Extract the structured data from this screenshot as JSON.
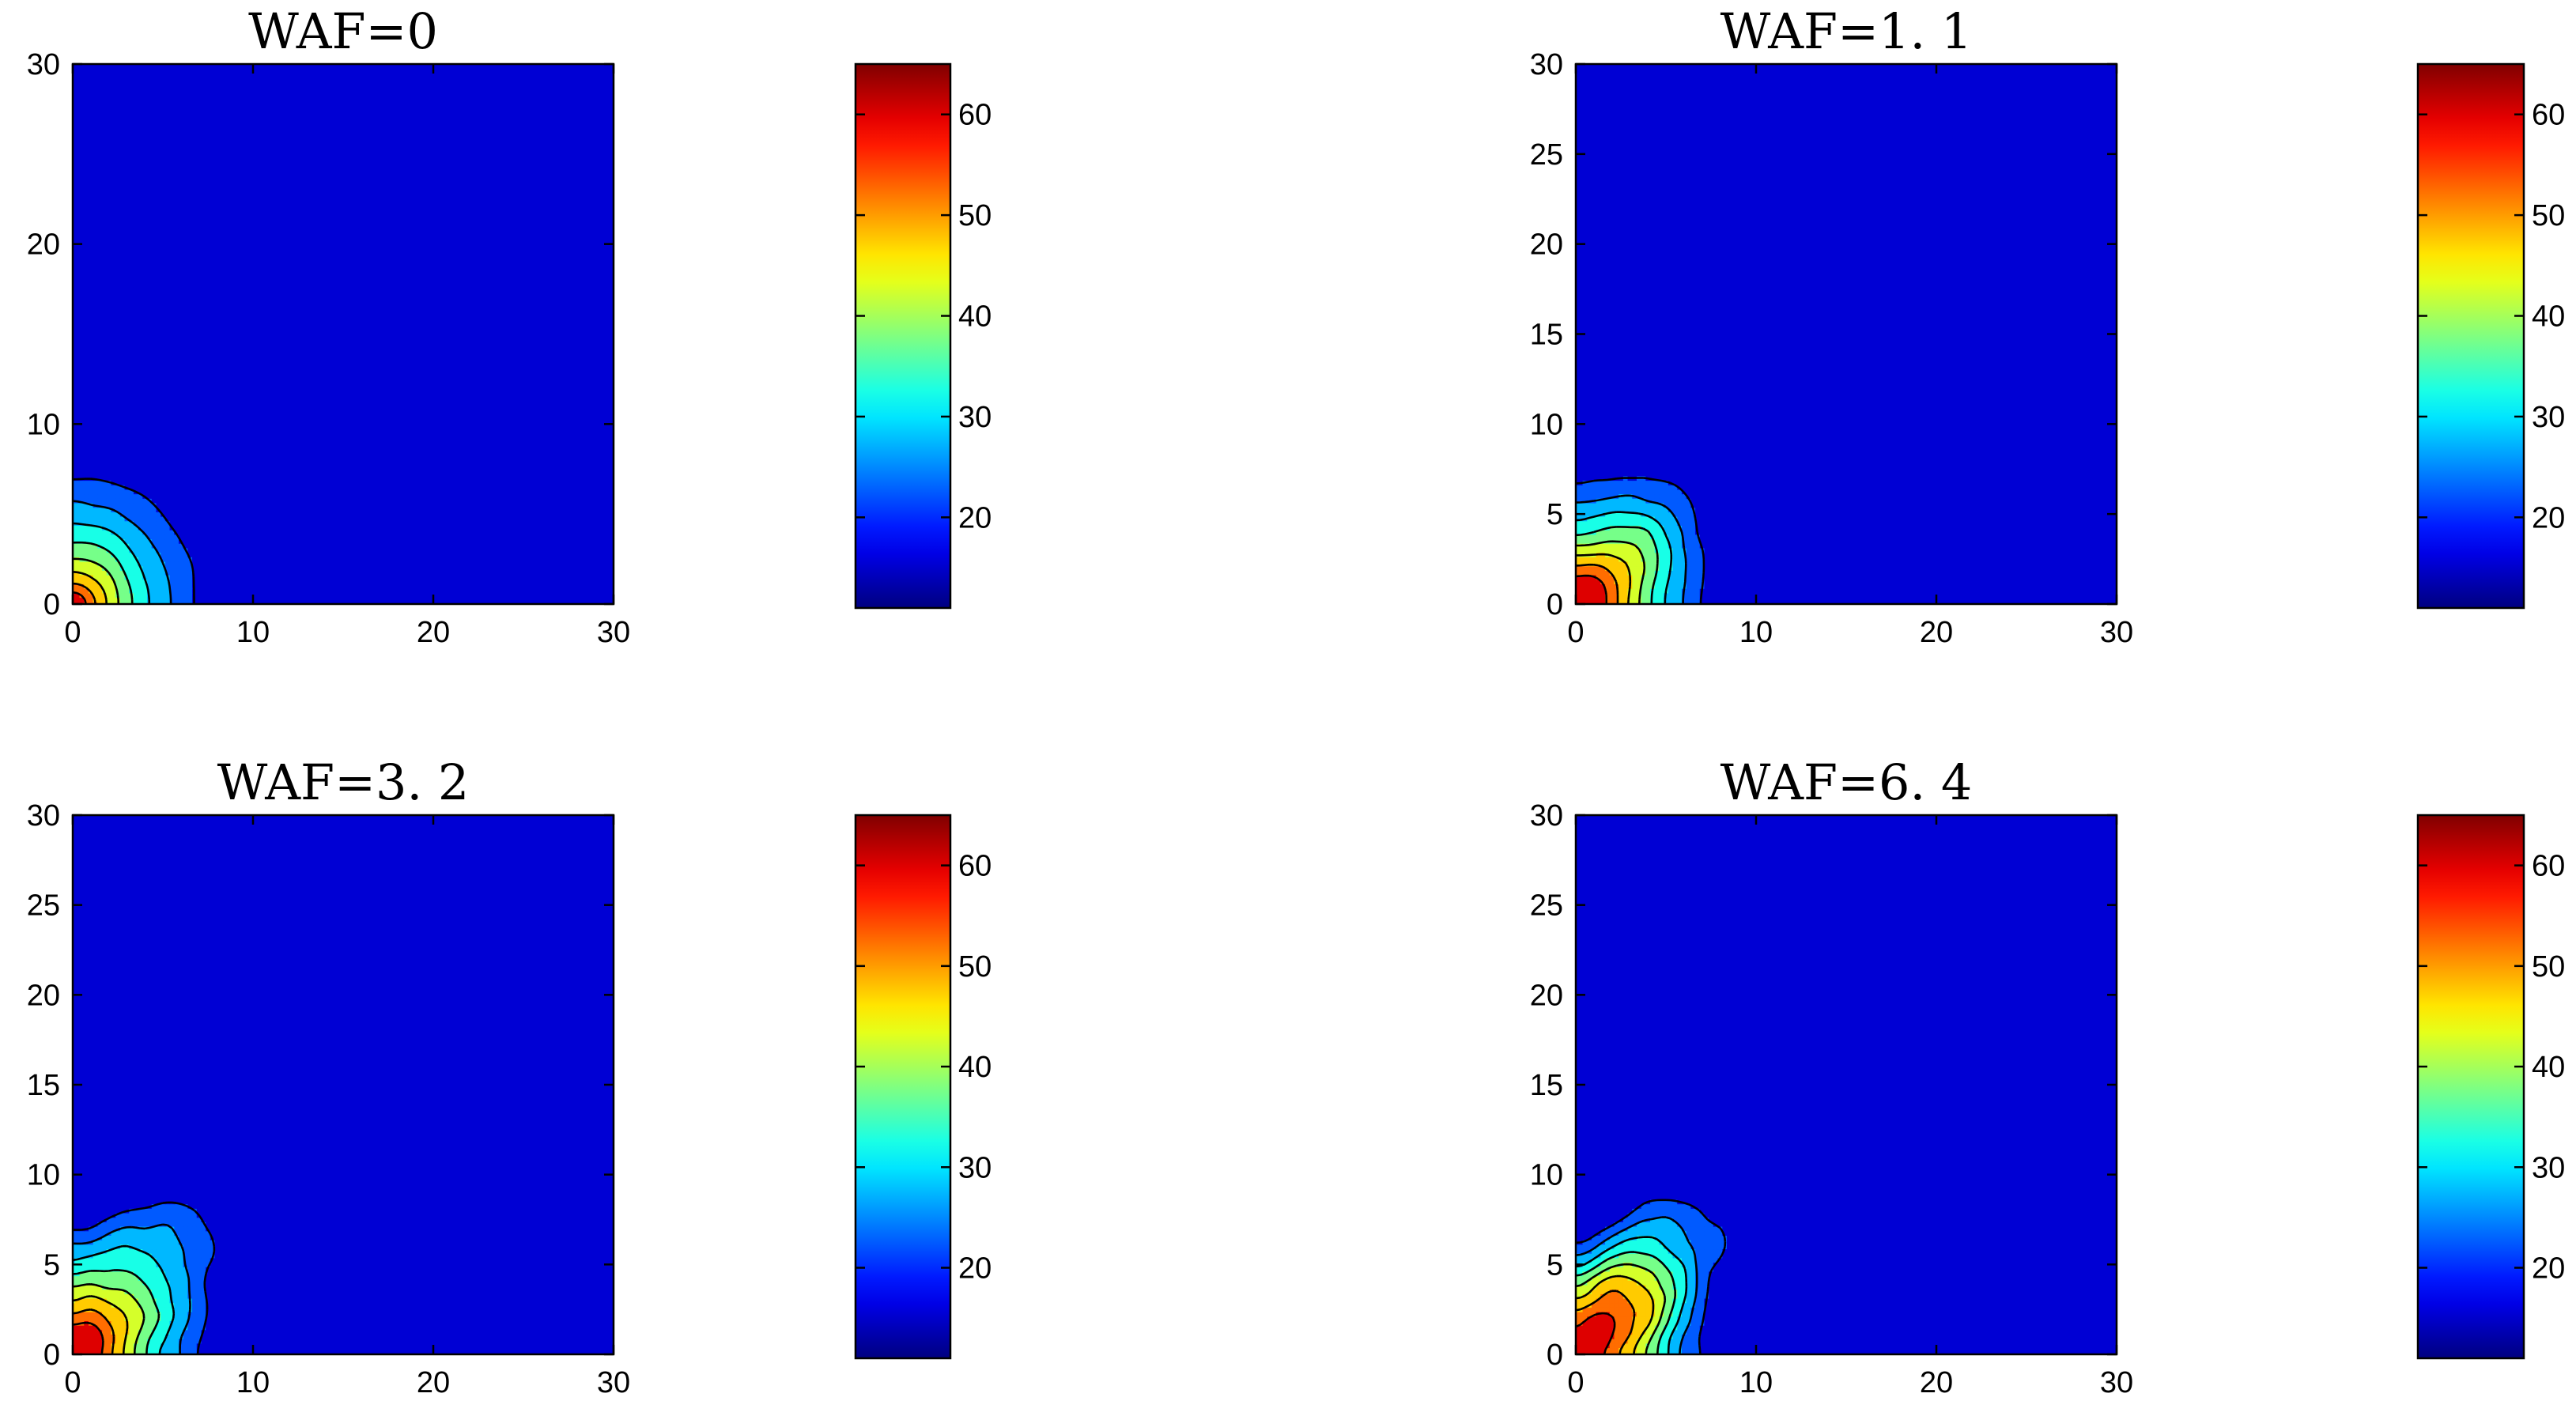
{
  "chart_data": [
    {
      "type": "heatmap",
      "subtype": "filled-contour",
      "title": "WAF=0",
      "xlim": [
        0,
        30
      ],
      "ylim": [
        0,
        30
      ],
      "xticks": [
        "0",
        "10",
        "20",
        "30"
      ],
      "yticks": [
        "0",
        "10",
        "20",
        "30"
      ],
      "levels": [
        55,
        50,
        45,
        40,
        35,
        30,
        25,
        20
      ],
      "colorbar": {
        "range": [
          11,
          65
        ],
        "ticks": [
          "20",
          "30",
          "40",
          "50",
          "60"
        ]
      },
      "field": {
        "peak": 63,
        "min": 12,
        "decay_m": 0.95,
        "lobe_amp": 0.0,
        "noise": 0.35,
        "streak_amp": 0.0
      }
    },
    {
      "type": "heatmap",
      "subtype": "filled-contour",
      "title": "WAF=1. 1",
      "xlim": [
        0,
        30
      ],
      "ylim": [
        0,
        30
      ],
      "xticks": [
        "0",
        "10",
        "20",
        "30"
      ],
      "yticks": [
        "0",
        "5",
        "10",
        "15",
        "20",
        "25",
        "30"
      ],
      "levels": [
        55,
        50,
        45,
        40,
        35,
        30,
        25,
        20
      ],
      "colorbar": {
        "range": [
          11,
          65
        ],
        "ticks": [
          "20",
          "30",
          "40",
          "50",
          "60"
        ]
      },
      "field": {
        "peak": 62,
        "min": 12,
        "decay_m": 1.35,
        "lobe_amp": 0.25,
        "noise": 0.35,
        "streak_amp": 0.0
      }
    },
    {
      "type": "heatmap",
      "subtype": "filled-contour",
      "title": "WAF=3. 2",
      "xlim": [
        0,
        30
      ],
      "ylim": [
        0,
        30
      ],
      "xticks": [
        "0",
        "10",
        "20",
        "30"
      ],
      "yticks": [
        "0",
        "5",
        "10",
        "15",
        "20",
        "25",
        "30"
      ],
      "levels": [
        55,
        50,
        45,
        40,
        35,
        30,
        25,
        20
      ],
      "colorbar": {
        "range": [
          11,
          65
        ],
        "ticks": [
          "20",
          "30",
          "40",
          "50",
          "60"
        ]
      },
      "field": {
        "peak": 62,
        "min": 12,
        "decay_m": 1.45,
        "lobe_amp": 0.5,
        "noise": 0.5,
        "streak_amp": 0.6
      }
    },
    {
      "type": "heatmap",
      "subtype": "filled-contour",
      "title": "WAF=6. 4",
      "xlim": [
        0,
        30
      ],
      "ylim": [
        0,
        30
      ],
      "xticks": [
        "0",
        "10",
        "20",
        "30"
      ],
      "yticks": [
        "0",
        "5",
        "10",
        "15",
        "20",
        "25",
        "30"
      ],
      "levels": [
        55,
        50,
        45,
        40,
        35,
        30,
        25,
        20
      ],
      "colorbar": {
        "range": [
          11,
          65
        ],
        "ticks": [
          "20",
          "30",
          "40",
          "50",
          "60"
        ]
      },
      "field": {
        "peak": 62,
        "min": 12,
        "decay_m": 1.45,
        "lobe_amp": 0.55,
        "noise": 0.6,
        "streak_amp": 1.5
      }
    }
  ],
  "colormap": "jet"
}
